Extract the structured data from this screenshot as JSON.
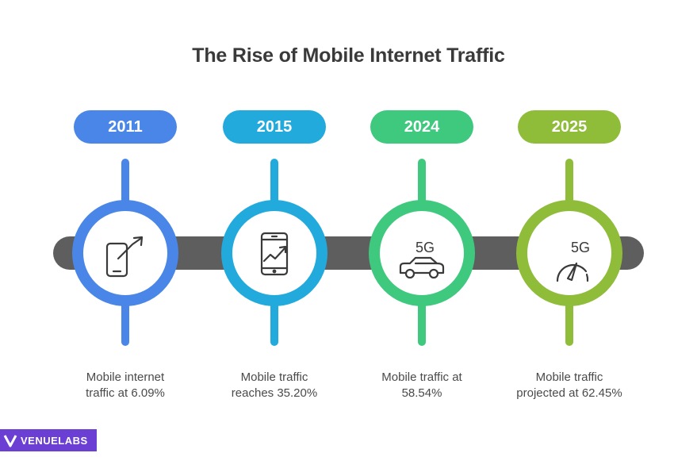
{
  "title": "The Rise of Mobile Internet Traffic",
  "milestones": [
    {
      "year": "2011",
      "text_line1": "Mobile internet",
      "text_line2": "traffic at 6.09%",
      "color": "#4a86e8",
      "icon": "phone-growth-icon",
      "icon_label": ""
    },
    {
      "year": "2015",
      "text_line1": "Mobile traffic",
      "text_line2": "reaches 35.20%",
      "color": "#22aadd",
      "icon": "smartphone-chart-icon",
      "icon_label": ""
    },
    {
      "year": "2024",
      "text_line1": "Mobile traffic at",
      "text_line2": "58.54%",
      "color": "#3ec97e",
      "icon": "5g-car-icon",
      "icon_label": "5G"
    },
    {
      "year": "2025",
      "text_line1": "Mobile traffic",
      "text_line2": "projected at 62.45%",
      "color": "#8fbd3a",
      "icon": "5g-speedometer-icon",
      "icon_label": "5G"
    }
  ],
  "brand": {
    "name_part1": "VENUE",
    "name_part2": "LABS",
    "color": "#6b3fd4"
  }
}
